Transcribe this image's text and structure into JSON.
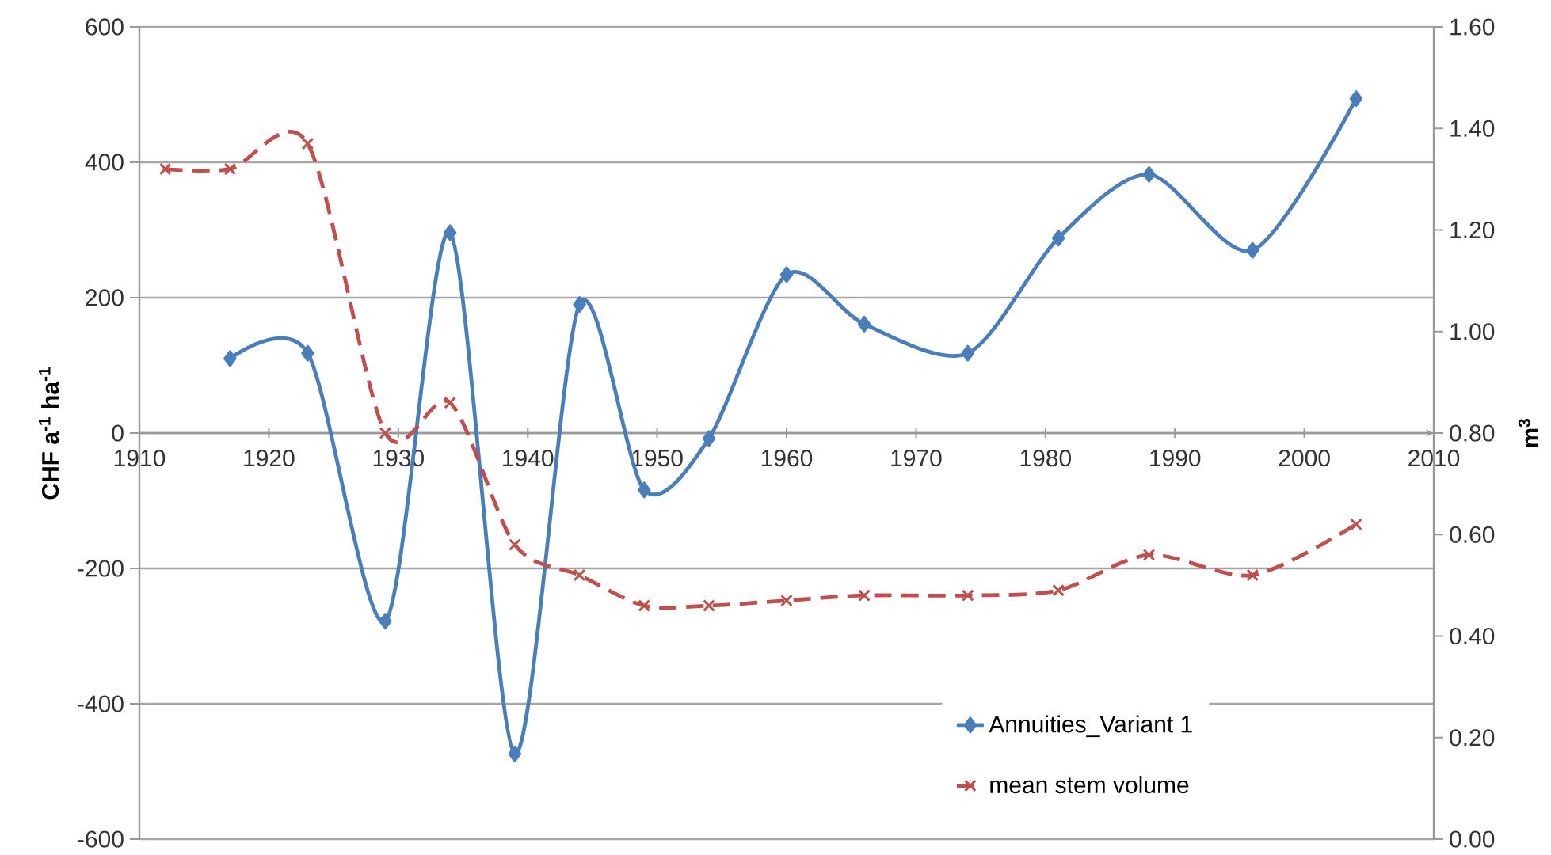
{
  "chart_data": {
    "type": "line",
    "x": [
      1912,
      1917,
      1923,
      1929,
      1934,
      1939,
      1944,
      1949,
      1954,
      1960,
      1966,
      1974,
      1981,
      1988,
      1996,
      2004
    ],
    "series": [
      {
        "name": "Annuities_Variant 1",
        "color": "#4a7ebb",
        "marker": "diamond",
        "line_style": "solid",
        "values": [
          null,
          110,
          118,
          -278,
          296,
          -474,
          190,
          -84,
          -8,
          234,
          161,
          118,
          288,
          382,
          270,
          494
        ]
      },
      {
        "name": "mean   stem   volume",
        "color": "#c0504d",
        "marker": "cross",
        "line_style": "dashed",
        "axis": "y2",
        "values": [
          1.32,
          1.32,
          1.37,
          0.8,
          0.86,
          0.58,
          0.52,
          0.46,
          0.46,
          0.47,
          0.48,
          0.48,
          0.49,
          0.56,
          0.52,
          0.62
        ]
      }
    ],
    "ylabel": "CHF a$^{-1}$ ha$^{-1}$",
    "y2label": "m$^{3}$",
    "xlim": [
      1910,
      2010
    ],
    "xticks": [
      1910,
      1920,
      1930,
      1940,
      1950,
      1960,
      1970,
      1980,
      1990,
      2000,
      2010
    ],
    "ylim": [
      -600,
      600
    ],
    "yticks": [
      -600,
      -400,
      -200,
      0,
      200,
      400,
      600
    ],
    "y2lim": [
      0,
      1.6
    ],
    "y2ticks": [
      {
        "value": 0,
        "label": "0.00"
      },
      {
        "value": 0.2,
        "label": "0.20"
      },
      {
        "value": 0.4,
        "label": "0.40"
      },
      {
        "value": 0.6,
        "label": "0.60"
      },
      {
        "value": 0.8,
        "label": "0.80"
      },
      {
        "value": 1.0,
        "label": "1.00"
      },
      {
        "value": 1.2,
        "label": "1.20"
      },
      {
        "value": 1.4,
        "label": "1.40"
      },
      {
        "value": 1.6,
        "label": "1.60"
      }
    ],
    "grid": "y",
    "legend": "bottom right"
  }
}
